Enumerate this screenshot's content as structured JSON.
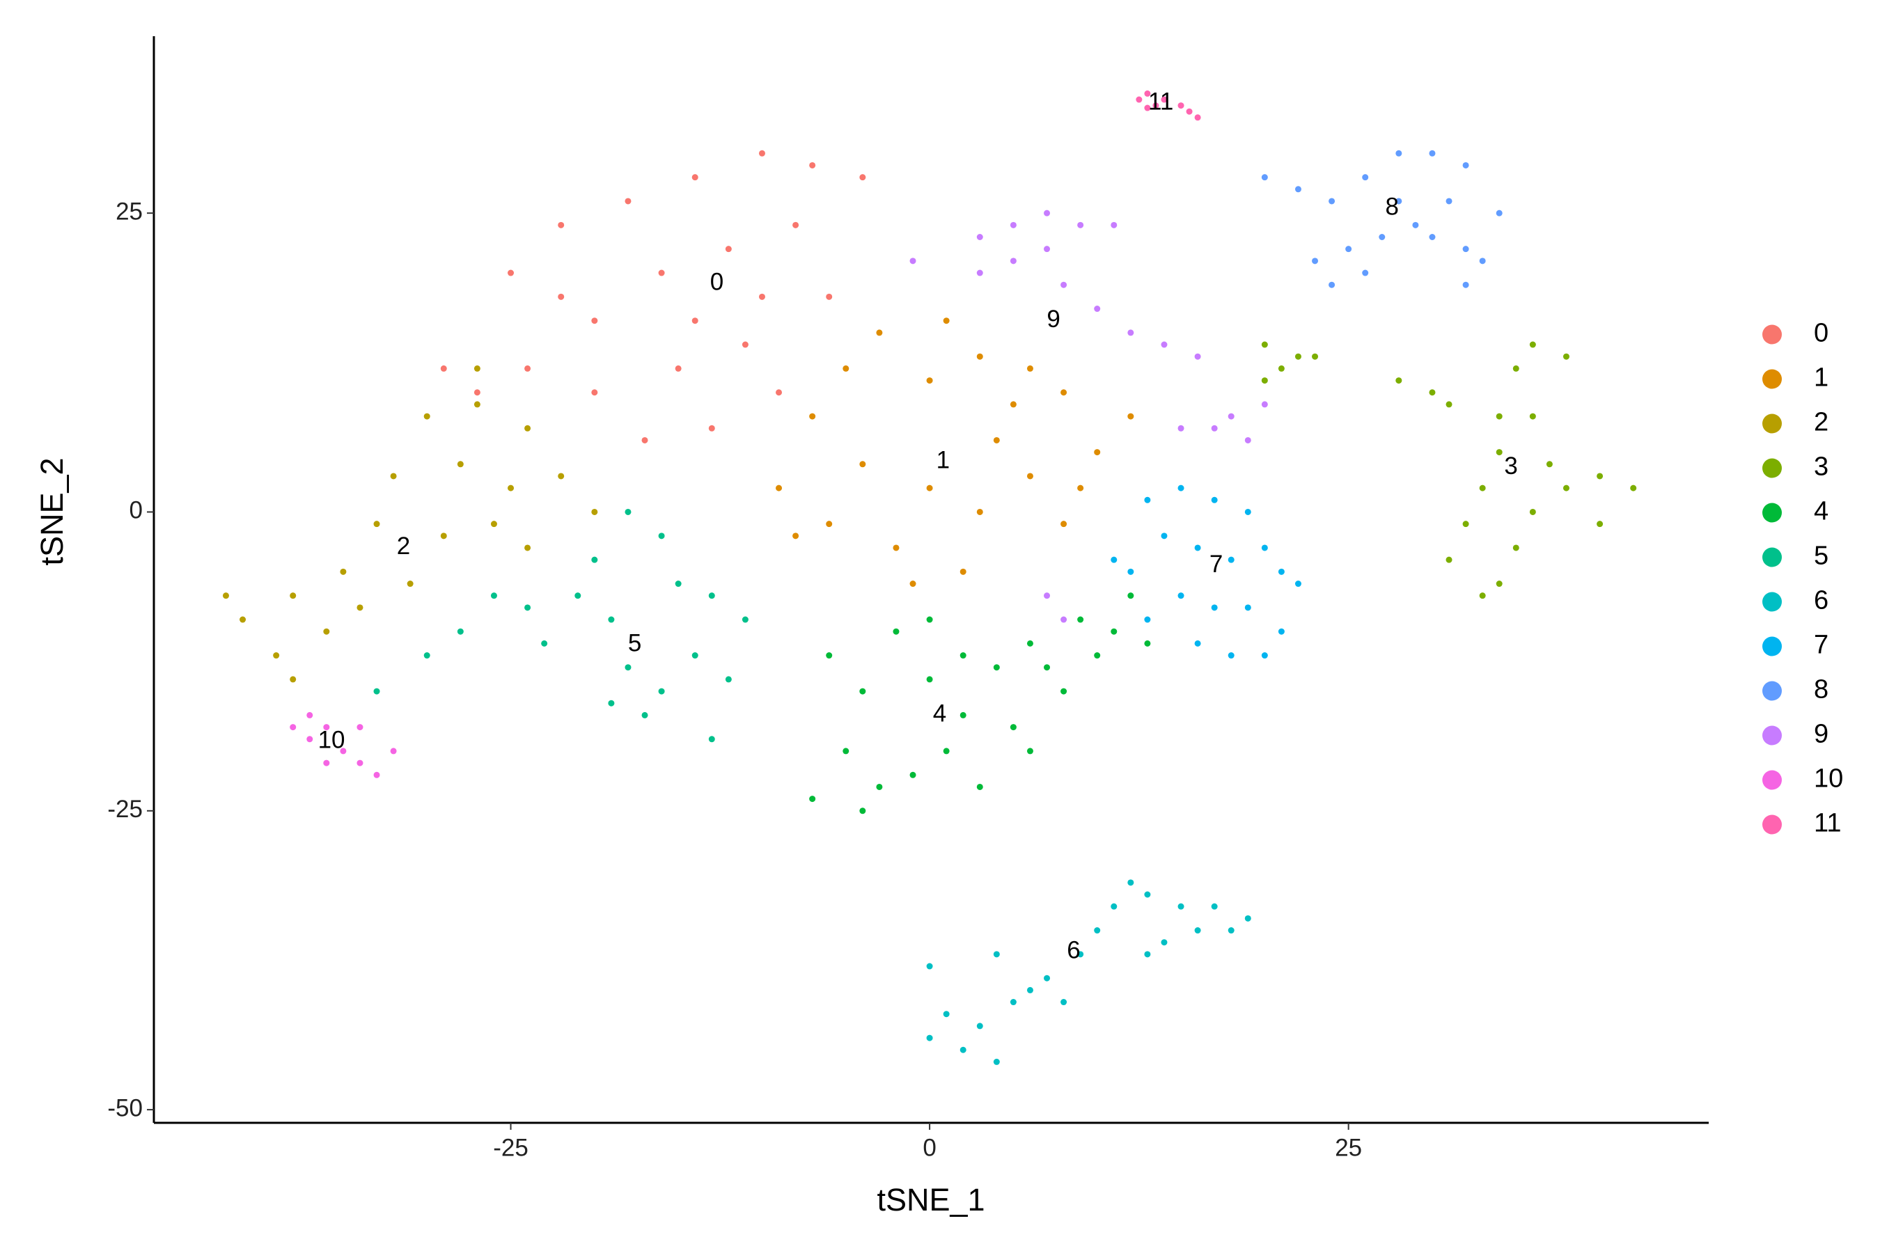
{
  "chart_data": {
    "type": "scatter",
    "x_label": "tSNE_1",
    "y_label": "tSNE_2",
    "xlim": [
      -46.3,
      46.5
    ],
    "ylim": [
      -51.1,
      39.8
    ],
    "xticks": [
      -25,
      0,
      25
    ],
    "yticks": [
      -50,
      -25,
      0,
      25
    ],
    "grid": false,
    "legend": "right",
    "series": [
      {
        "name": "0",
        "color": "#F8766D",
        "centroid": [
          -12.7,
          19.1
        ],
        "x": [
          -25,
          -22,
          -18,
          -14,
          -10,
          -7,
          -4,
          -20,
          -16,
          -12,
          -8,
          -24,
          -20,
          -15,
          -11,
          -9,
          -17,
          -13,
          -27,
          -29,
          -6,
          -10,
          -14,
          -22
        ],
        "y": [
          20,
          24,
          26,
          28,
          30,
          29,
          28,
          16,
          20,
          22,
          24,
          12,
          10,
          12,
          14,
          10,
          6,
          7,
          10,
          12,
          18,
          18,
          16,
          18
        ]
      },
      {
        "name": "1",
        "color": "#DE8C00",
        "centroid": [
          0.8,
          4.2
        ],
        "x": [
          -7,
          -5,
          -3,
          0,
          3,
          6,
          8,
          -9,
          -6,
          -4,
          -2,
          0,
          2,
          4,
          6,
          8,
          10,
          12,
          -8,
          -1,
          3,
          5,
          9,
          1
        ],
        "y": [
          8,
          12,
          15,
          11,
          13,
          12,
          10,
          2,
          -1,
          4,
          -3,
          2,
          -5,
          6,
          3,
          -1,
          5,
          8,
          -2,
          -6,
          0,
          9,
          2,
          16
        ]
      },
      {
        "name": "2",
        "color": "#B79F00",
        "centroid": [
          -31.4,
          -3.0
        ],
        "x": [
          -30,
          -27,
          -24,
          -32,
          -28,
          -25,
          -22,
          -33,
          -29,
          -26,
          -20,
          -35,
          -38,
          -41,
          -42,
          -39,
          -36,
          -38,
          -34,
          -31,
          -24,
          -27
        ],
        "y": [
          8,
          9,
          7,
          3,
          4,
          2,
          3,
          -1,
          -2,
          -1,
          0,
          -5,
          -7,
          -9,
          -7,
          -12,
          -10,
          -14,
          -8,
          -6,
          -3,
          12
        ]
      },
      {
        "name": "3",
        "color": "#7CAE00",
        "centroid": [
          34.7,
          3.7
        ],
        "x": [
          20,
          21,
          22,
          20,
          23,
          28,
          30,
          31,
          34,
          35,
          36,
          38,
          34,
          33,
          36,
          32,
          35,
          31,
          33,
          34,
          38,
          40,
          42,
          40,
          37,
          36
        ],
        "y": [
          14,
          12,
          13,
          11,
          13,
          11,
          10,
          9,
          8,
          12,
          14,
          13,
          5,
          2,
          0,
          -1,
          -3,
          -4,
          -7,
          -6,
          2,
          3,
          2,
          -1,
          4,
          8
        ]
      },
      {
        "name": "4",
        "color": "#00BA38",
        "centroid": [
          0.6,
          -17.0
        ],
        "x": [
          -6,
          -4,
          -2,
          0,
          2,
          4,
          6,
          8,
          9,
          11,
          10,
          -5,
          -3,
          -1,
          1,
          3,
          5,
          6,
          -7,
          -4,
          2,
          0,
          7,
          12,
          13
        ],
        "y": [
          -12,
          -15,
          -10,
          -9,
          -12,
          -13,
          -11,
          -15,
          -9,
          -10,
          -12,
          -20,
          -23,
          -22,
          -20,
          -23,
          -18,
          -20,
          -24,
          -25,
          -17,
          -14,
          -13,
          -7,
          -11
        ]
      },
      {
        "name": "5",
        "color": "#00C08B",
        "centroid": [
          -17.6,
          -11.1
        ],
        "x": [
          -30,
          -28,
          -26,
          -24,
          -23,
          -21,
          -19,
          -20,
          -18,
          -16,
          -14,
          -12,
          -15,
          -13,
          -11,
          -19,
          -17,
          -16,
          -18,
          -13,
          -33
        ],
        "y": [
          -12,
          -10,
          -7,
          -8,
          -11,
          -7,
          -9,
          -4,
          -13,
          -15,
          -12,
          -14,
          -6,
          -7,
          -9,
          -16,
          -17,
          -2,
          0,
          -19,
          -15
        ]
      },
      {
        "name": "6",
        "color": "#00BFC4",
        "centroid": [
          8.6,
          -36.8
        ],
        "x": [
          0,
          1,
          0,
          2,
          3,
          4,
          5,
          6,
          7,
          9,
          10,
          11,
          13,
          15,
          16,
          14,
          17,
          18,
          19,
          8,
          12,
          4,
          13
        ],
        "y": [
          -38,
          -42,
          -44,
          -45,
          -43,
          -46,
          -41,
          -40,
          -39,
          -37,
          -35,
          -33,
          -32,
          -33,
          -35,
          -36,
          -33,
          -35,
          -34,
          -41,
          -31,
          -37,
          -37
        ]
      },
      {
        "name": "7",
        "color": "#00B4F0",
        "centroid": [
          17.1,
          -4.5
        ],
        "x": [
          13,
          15,
          17,
          19,
          14,
          16,
          18,
          20,
          21,
          12,
          15,
          17,
          19,
          21,
          16,
          18,
          20,
          13,
          11,
          22
        ],
        "y": [
          1,
          2,
          1,
          0,
          -2,
          -3,
          -4,
          -3,
          -5,
          -5,
          -7,
          -8,
          -8,
          -10,
          -11,
          -12,
          -12,
          -9,
          -4,
          -6
        ]
      },
      {
        "name": "8",
        "color": "#619CFF",
        "centroid": [
          27.6,
          25.4
        ],
        "x": [
          20,
          22,
          24,
          26,
          28,
          30,
          32,
          31,
          29,
          27,
          25,
          23,
          24,
          26,
          32,
          33,
          32,
          34,
          28,
          30
        ],
        "y": [
          28,
          27,
          26,
          28,
          30,
          30,
          29,
          26,
          24,
          23,
          22,
          21,
          19,
          20,
          22,
          21,
          19,
          25,
          26,
          23
        ]
      },
      {
        "name": "9",
        "color": "#C77CFF",
        "centroid": [
          7.4,
          16.0
        ],
        "x": [
          3,
          5,
          7,
          9,
          11,
          5,
          7,
          3,
          8,
          10,
          -1,
          12,
          14,
          16,
          20,
          18,
          17,
          19,
          15,
          7,
          8
        ],
        "y": [
          23,
          24,
          25,
          24,
          24,
          21,
          22,
          20,
          19,
          17,
          21,
          15,
          14,
          13,
          9,
          8,
          7,
          6,
          7,
          -7,
          -9
        ]
      },
      {
        "name": "10",
        "color": "#F564E3",
        "centroid": [
          -35.7,
          -19.2
        ],
        "x": [
          -38,
          -37,
          -36,
          -35,
          -34,
          -33,
          -36,
          -37,
          -34,
          -32
        ],
        "y": [
          -18,
          -19,
          -18,
          -20,
          -21,
          -22,
          -21,
          -17,
          -18,
          -20
        ]
      },
      {
        "name": "11",
        "color": "#FF64B0",
        "centroid": [
          13.8,
          34.2
        ],
        "x": [
          12.5,
          13,
          13.5,
          14,
          15,
          15.5,
          16,
          13
        ],
        "y": [
          34.5,
          35,
          34,
          34.5,
          34,
          33.5,
          33,
          33.8
        ]
      }
    ]
  }
}
